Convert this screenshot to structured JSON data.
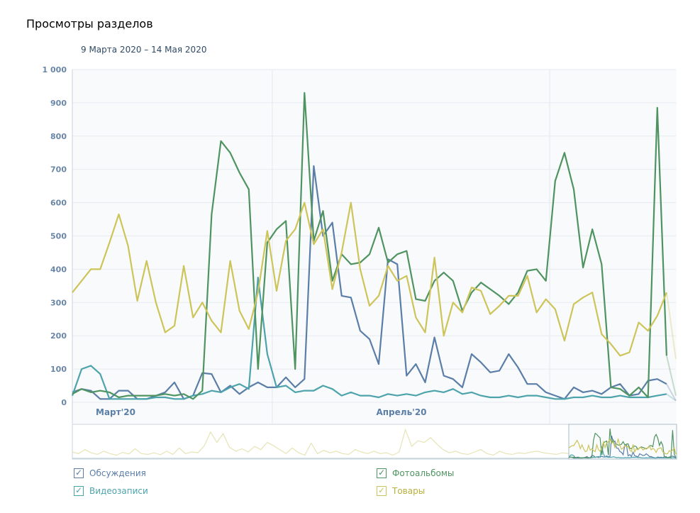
{
  "title": "Просмотры разделов",
  "subtitle": "9 Марта 2020 – 14 Мая 2020",
  "chart_data": {
    "type": "line",
    "title": "Просмотры разделов",
    "subtitle": "9 Марта 2020 – 14 Мая 2020",
    "ylim": [
      0,
      1000
    ],
    "yticks": [
      0,
      100,
      200,
      300,
      400,
      500,
      600,
      700,
      800,
      900,
      1000
    ],
    "ytick_labels": [
      "0",
      "100",
      "200",
      "300",
      "400",
      "500",
      "600",
      "700",
      "800",
      "900",
      "1 000"
    ],
    "x_start": "2020-03-09",
    "x_end": "2020-05-14",
    "xtick_labels": [
      "Март'20",
      "Апрель'20"
    ],
    "grid": true,
    "legend_position": "bottom",
    "series": [
      {
        "name": "Обсуждения",
        "color": "#5b7ea8",
        "values": [
          30,
          40,
          35,
          10,
          10,
          35,
          35,
          10,
          10,
          20,
          30,
          60,
          10,
          20,
          88,
          85,
          30,
          50,
          25,
          45,
          60,
          45,
          45,
          75,
          45,
          70,
          710,
          500,
          540,
          320,
          315,
          215,
          190,
          115,
          430,
          415,
          80,
          115,
          60,
          195,
          80,
          70,
          45,
          145,
          120,
          90,
          95,
          145,
          105,
          55,
          55,
          30,
          20,
          10,
          45,
          30,
          35,
          25,
          45,
          55,
          20,
          25,
          65,
          70,
          55,
          5
        ]
      },
      {
        "name": "Видеозаписи",
        "color": "#4da3ab",
        "values": [
          20,
          100,
          110,
          85,
          10,
          10,
          10,
          10,
          10,
          15,
          15,
          10,
          10,
          20,
          25,
          35,
          30,
          45,
          55,
          40,
          375,
          145,
          45,
          50,
          30,
          35,
          35,
          50,
          40,
          20,
          30,
          20,
          20,
          15,
          25,
          20,
          25,
          20,
          30,
          35,
          30,
          40,
          25,
          30,
          20,
          15,
          15,
          20,
          15,
          20,
          20,
          15,
          10,
          10,
          15,
          15,
          20,
          15,
          15,
          20,
          15,
          15,
          15,
          20,
          25,
          5
        ]
      },
      {
        "name": "Фотоальбомы",
        "color": "#4f9460",
        "values": [
          25,
          40,
          30,
          35,
          30,
          15,
          20,
          20,
          20,
          20,
          25,
          20,
          25,
          10,
          35,
          565,
          785,
          750,
          690,
          640,
          100,
          480,
          520,
          545,
          100,
          930,
          485,
          575,
          365,
          445,
          415,
          420,
          445,
          525,
          420,
          445,
          455,
          310,
          305,
          365,
          390,
          365,
          275,
          330,
          360,
          340,
          320,
          295,
          330,
          395,
          400,
          365,
          665,
          750,
          640,
          405,
          520,
          415,
          45,
          40,
          20,
          45,
          15,
          885,
          140,
          20
        ]
      },
      {
        "name": "Товары",
        "color": "#cdc45a",
        "values": [
          330,
          365,
          400,
          400,
          480,
          565,
          470,
          305,
          425,
          300,
          210,
          230,
          410,
          255,
          300,
          245,
          210,
          425,
          275,
          220,
          330,
          515,
          335,
          485,
          520,
          600,
          475,
          520,
          340,
          450,
          600,
          400,
          290,
          320,
          410,
          365,
          380,
          255,
          210,
          435,
          200,
          300,
          270,
          345,
          335,
          265,
          290,
          320,
          320,
          380,
          270,
          310,
          280,
          185,
          295,
          315,
          330,
          205,
          175,
          140,
          150,
          240,
          215,
          260,
          330,
          130
        ]
      }
    ],
    "overview": [
      80,
      60,
      110,
      70,
      50,
      90,
      60,
      40,
      75,
      55,
      120,
      60,
      50,
      70,
      45,
      90,
      50,
      130,
      60,
      80,
      70,
      160,
      330,
      200,
      310,
      140,
      90,
      120,
      80,
      150,
      110,
      200,
      160,
      110,
      60,
      130,
      70,
      40,
      190,
      60,
      100,
      70,
      90,
      60,
      50,
      110,
      80,
      60,
      90,
      60,
      70,
      40,
      80,
      360,
      150,
      220,
      200,
      260,
      180,
      110,
      70,
      90,
      60,
      50,
      80,
      110,
      60,
      40,
      90,
      60,
      50,
      70,
      60,
      80,
      90,
      70,
      60,
      50,
      70,
      60
    ]
  }
}
